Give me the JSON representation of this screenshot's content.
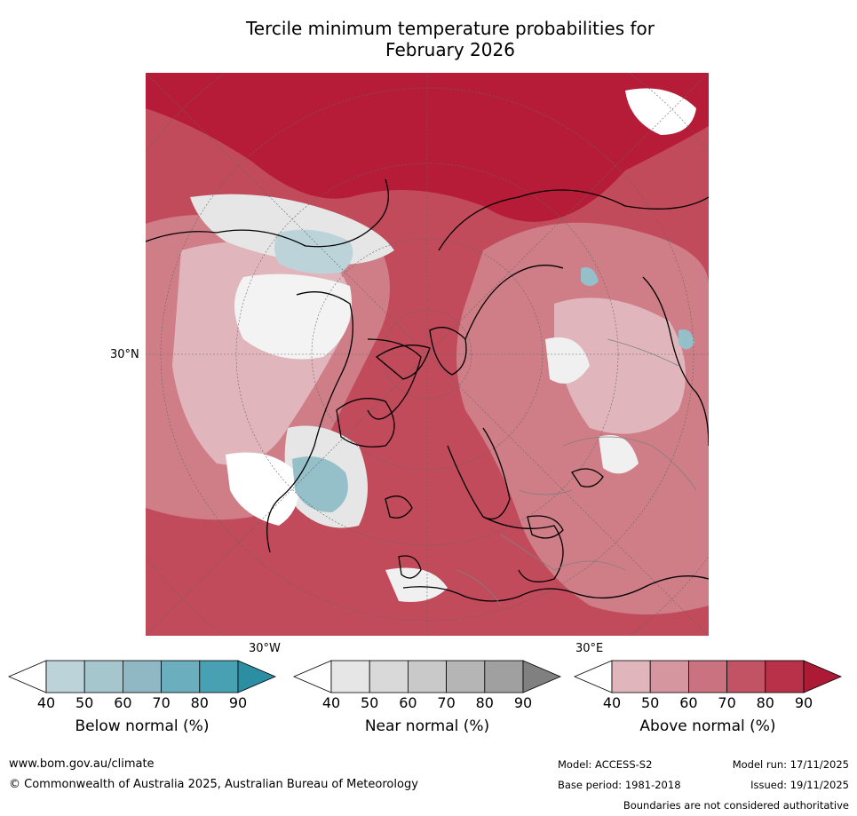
{
  "title_line1": "Tercile minimum temperature probabilities for",
  "title_line2": "February 2026",
  "map": {
    "lat_label": "30°N",
    "lon_left_label": "30°W",
    "lon_right_label": "30°E",
    "colors": {
      "ocean_base": "#b61c37",
      "above_light": "#e0b6bc",
      "above_mid": "#cf7e88",
      "above_strong": "#c2505f",
      "near_normal": "#e6e6e6",
      "below_light": "#bcd3da",
      "below_mid": "#95bfc9",
      "coast": "#000000",
      "border": "#808080",
      "grid": "#666666"
    }
  },
  "colorbars": [
    {
      "label": "Below normal (%)",
      "ticks": [
        "40",
        "50",
        "60",
        "70",
        "80",
        "90"
      ],
      "colors": [
        "#ffffff",
        "#bcd3da",
        "#a6c6ce",
        "#8fb8c4",
        "#6baebd",
        "#47a1b2",
        "#2c8ea3"
      ]
    },
    {
      "label": "Near normal (%)",
      "ticks": [
        "40",
        "50",
        "60",
        "70",
        "80",
        "90"
      ],
      "colors": [
        "#ffffff",
        "#e6e6e6",
        "#d9d9d9",
        "#c9c9c9",
        "#b5b5b5",
        "#a0a0a0",
        "#808080"
      ]
    },
    {
      "label": "Above normal (%)",
      "ticks": [
        "40",
        "50",
        "60",
        "70",
        "80",
        "90"
      ],
      "colors": [
        "#ffffff",
        "#e0b6bc",
        "#d6969f",
        "#ca7280",
        "#c25364",
        "#b93148",
        "#ad1a36"
      ]
    }
  ],
  "footer": {
    "url": "www.bom.gov.au/climate",
    "copyright": "© Commonwealth of Australia 2025, Australian Bureau of Meteorology",
    "model": "Model: ACCESS-S2",
    "base_period": "Base period: 1981-2018",
    "model_run": "Model run: 17/11/2025",
    "issued": "Issued: 19/11/2025",
    "disclaimer": "Boundaries are not considered authoritative"
  }
}
